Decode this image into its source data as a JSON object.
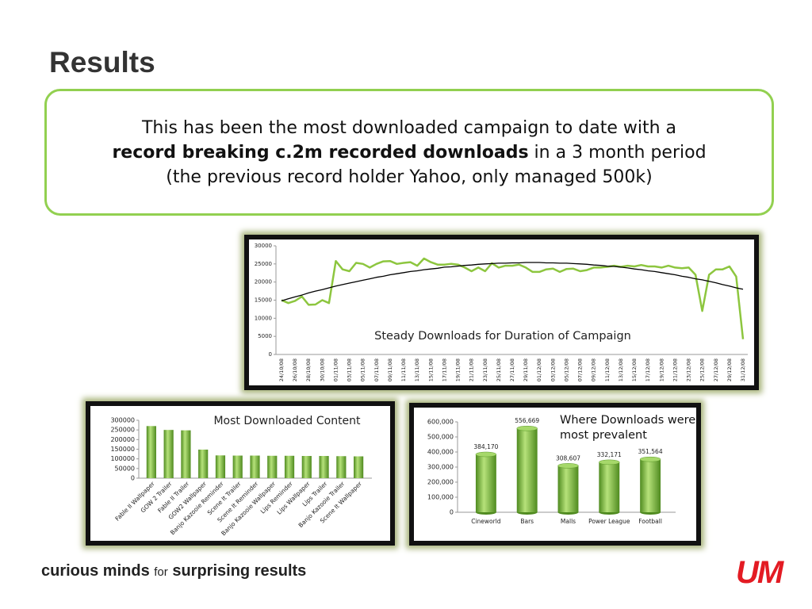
{
  "title": "Results",
  "callout": {
    "line1": "This has been the most downloaded campaign to date with a",
    "bold": "record breaking c.2m recorded downloads",
    "rest": " in a 3 month period",
    "line3": "(the previous record holder Yahoo, only managed 500k)"
  },
  "footer": {
    "part1": "curious minds",
    "part2": "for",
    "part3": "surprising results"
  },
  "logo": "UM",
  "chart_data": [
    {
      "type": "line",
      "annotation": "Steady Downloads for Duration of Campaign",
      "categories": [
        "24/10/08",
        null,
        "26/10/08",
        null,
        "28/10/08",
        null,
        "30/10/08",
        null,
        "01/11/08",
        null,
        "03/11/08",
        null,
        "05/11/08",
        null,
        "07/11/08",
        null,
        "09/11/08",
        null,
        "11/11/08",
        null,
        "13/11/08",
        null,
        "15/11/08",
        null,
        "17/11/08",
        null,
        "19/11/08",
        null,
        "21/11/08",
        null,
        "23/11/08",
        null,
        "25/11/08",
        null,
        "27/11/08",
        null,
        "29/11/08",
        null,
        "01/12/08",
        null,
        "03/12/08",
        null,
        "05/12/08",
        null,
        "07/12/08",
        null,
        "09/12/08",
        null,
        "11/12/08",
        null,
        "13/12/08",
        null,
        "15/12/08",
        null,
        "17/12/08",
        null,
        "19/12/08",
        null,
        "21/12/08",
        null,
        "23/12/08",
        null,
        "25/12/08",
        null,
        "27/12/08",
        null,
        "29/12/08",
        null,
        "31/12/08"
      ],
      "series": [
        {
          "color": "#8dc63f",
          "values": [
            15000,
            14200,
            14800,
            16000,
            13700,
            13800,
            15000,
            14200,
            25800,
            23500,
            23000,
            25300,
            25000,
            24000,
            25000,
            25700,
            25800,
            25000,
            25300,
            25500,
            24500,
            26500,
            25500,
            24800,
            24800,
            25000,
            24800,
            24000,
            23000,
            24000,
            23000,
            25200,
            24000,
            24500,
            24500,
            24800,
            24000,
            22800,
            22800,
            23500,
            23700,
            22800,
            23600,
            23700,
            23000,
            23300,
            24000,
            24000,
            24200,
            24500,
            24200,
            24500,
            24300,
            24700,
            24300,
            24300,
            24000,
            24500,
            24000,
            23800,
            24000,
            22000,
            12000,
            22000,
            23500,
            23500,
            24300,
            21500,
            4200
          ]
        },
        {
          "color": "#000000",
          "values": [
            14800,
            15400,
            15900,
            16400,
            17000,
            17500,
            17900,
            18400,
            18900,
            19300,
            19700,
            20100,
            20500,
            20900,
            21300,
            21600,
            22000,
            22300,
            22600,
            22900,
            23100,
            23400,
            23600,
            23800,
            24100,
            24200,
            24400,
            24600,
            24700,
            24900,
            25000,
            25100,
            25200,
            25200,
            25300,
            25300,
            25400,
            25400,
            25400,
            25300,
            25300,
            25200,
            25200,
            25100,
            25000,
            24900,
            24700,
            24600,
            24400,
            24300,
            24100,
            23900,
            23600,
            23400,
            23100,
            22900,
            22600,
            22300,
            22000,
            21600,
            21300,
            20900,
            20600,
            20200,
            19800,
            19300,
            18900,
            18400,
            18000
          ]
        }
      ],
      "ylim": [
        0,
        30000
      ],
      "yticks": [
        0,
        5000,
        10000,
        15000,
        20000,
        25000,
        30000
      ],
      "grid": false
    },
    {
      "type": "bar",
      "title": "Most Downloaded Content",
      "categories": [
        "Fable II Wallpaper",
        "GOW 2 Trailer",
        "Fable II Trailer",
        "GOW2 Wallpaper",
        "Banjo Kazooie Reminder",
        "Scene It Trailer",
        "Scene It Reminder",
        "Banjo Kazooie Wallpaper",
        "Lips Reminder",
        "Lips Wallpaper",
        "Lips Trailer",
        "Banjo Kazooie Trailer",
        "Scene It Wallpaper"
      ],
      "values": [
        270000,
        250000,
        248000,
        148000,
        118000,
        117000,
        117000,
        116000,
        116000,
        115000,
        115000,
        114000,
        113000
      ],
      "color": "#7ac143",
      "ylim": [
        0,
        300000
      ],
      "yticks": [
        0,
        50000,
        100000,
        150000,
        200000,
        250000,
        300000
      ],
      "grid": false
    },
    {
      "type": "cylinder",
      "title": "Where Downloads were most prevalent",
      "categories": [
        "Cineworld",
        "Bars",
        "Malls",
        "Power League",
        "Football"
      ],
      "values": [
        384170,
        556669,
        308607,
        332171,
        351564
      ],
      "value_labels": [
        "384,170",
        "556,669",
        "308,607",
        "332,171",
        "351,564"
      ],
      "color": "#7ac143",
      "ylim": [
        0,
        600000
      ],
      "yticks": [
        0,
        {
          "value": 100000,
          "label": "100,000"
        },
        {
          "value": 200000,
          "label": "200,000"
        },
        {
          "value": 300000,
          "label": "300,000"
        },
        {
          "value": 400000,
          "label": "400,000"
        },
        {
          "value": 500000,
          "label": "500,000"
        },
        {
          "value": 600000,
          "label": "600,000"
        }
      ],
      "grid": false
    }
  ]
}
